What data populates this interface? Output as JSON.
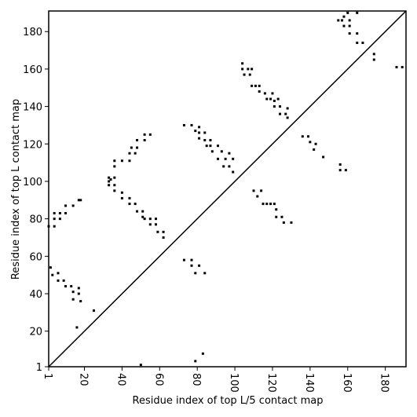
{
  "chart_data": {
    "type": "scatter",
    "x_label": "Residue index of top L/5 contact map",
    "y_label": "Residue index of top L contact map",
    "xlim": [
      1,
      191
    ],
    "ylim": [
      1,
      191
    ],
    "xticks": [
      1,
      20,
      40,
      60,
      80,
      100,
      120,
      140,
      160,
      180
    ],
    "yticks": [
      1,
      20,
      40,
      60,
      80,
      100,
      120,
      140,
      160,
      180
    ],
    "color": "#000000",
    "diagonal": true,
    "series": [
      {
        "color": "#000000",
        "x": [
          1,
          4,
          4,
          4,
          7,
          7,
          10,
          10,
          14,
          17,
          18,
          33,
          33,
          33,
          34,
          36,
          36,
          36,
          36,
          36,
          40,
          40,
          40,
          44,
          44,
          45,
          47,
          48,
          48,
          52,
          52,
          55,
          44,
          44,
          47,
          48,
          51,
          51,
          52,
          55,
          55,
          58,
          58,
          59,
          62,
          62,
          2,
          3,
          6,
          6,
          9,
          10,
          13,
          14,
          14,
          17,
          17,
          18,
          16,
          25,
          50,
          79,
          83,
          73,
          77,
          77,
          79,
          81,
          84,
          73,
          77,
          79,
          81,
          81,
          81,
          84,
          84,
          85,
          87,
          87,
          88,
          91,
          91,
          93,
          94,
          95,
          97,
          97,
          99,
          99,
          104,
          104,
          105,
          107,
          108,
          109,
          109,
          111,
          113,
          113,
          116,
          117,
          119,
          120,
          121,
          121,
          123,
          124,
          124,
          127,
          128,
          128,
          110,
          112,
          114,
          115,
          117,
          119,
          121,
          122,
          122,
          125,
          126,
          130,
          136,
          139,
          140,
          142,
          143,
          147,
          156,
          156,
          159,
          155,
          157,
          158,
          158,
          160,
          161,
          161,
          161,
          165,
          165,
          165,
          168,
          174,
          174,
          186,
          189
        ],
        "values": [
          76,
          76,
          80,
          83,
          80,
          83,
          83,
          87,
          87,
          90,
          90,
          98,
          100,
          102,
          101,
          98,
          102,
          95,
          108,
          111,
          94,
          91,
          111,
          111,
          115,
          118,
          115,
          118,
          122,
          122,
          125,
          125,
          91,
          88,
          88,
          84,
          84,
          81,
          80,
          80,
          77,
          80,
          77,
          73,
          73,
          70,
          54,
          50,
          47,
          51,
          47,
          44,
          44,
          41,
          37,
          40,
          43,
          36,
          22,
          31,
          2,
          4,
          8,
          58,
          58,
          55,
          51,
          55,
          51,
          130,
          130,
          127,
          129,
          126,
          123,
          126,
          122,
          119,
          122,
          119,
          116,
          119,
          112,
          116,
          108,
          112,
          115,
          108,
          112,
          105,
          163,
          160,
          157,
          160,
          157,
          160,
          151,
          151,
          148,
          151,
          147,
          144,
          144,
          147,
          140,
          143,
          144,
          136,
          140,
          136,
          139,
          134,
          95,
          92,
          95,
          88,
          88,
          88,
          88,
          85,
          81,
          81,
          78,
          78,
          124,
          124,
          121,
          117,
          120,
          113,
          109,
          106,
          106,
          186,
          186,
          183,
          188,
          190,
          186,
          179,
          183,
          190,
          179,
          174,
          174,
          165,
          168,
          161,
          161
        ]
      }
    ]
  }
}
